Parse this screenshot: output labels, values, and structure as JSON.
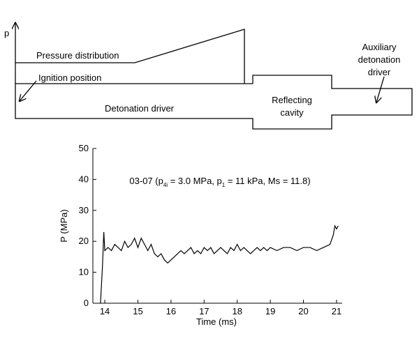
{
  "diagram": {
    "axis_label": "p",
    "pressure_label": "Pressure distribution",
    "ignition_label": "Ignition position",
    "driver_label": "Detonation driver",
    "cavity_label": [
      "Reflecting",
      "cavity"
    ],
    "aux_label": [
      "Auxiliary",
      "detonation",
      "driver"
    ]
  },
  "chart_data": {
    "type": "line",
    "annotation_parts": [
      "03-07 (p",
      "4i",
      " = 3.0 MPa, p",
      "1",
      " = 11 kPa, Ms = 11.8)"
    ],
    "xlabel": "Time (ms)",
    "ylabel": "P (MPa)",
    "color": "#000000",
    "x": [
      13.87,
      13.93,
      13.97,
      14.0,
      14.1,
      14.2,
      14.3,
      14.4,
      14.5,
      14.6,
      14.7,
      14.8,
      14.9,
      15.0,
      15.1,
      15.2,
      15.3,
      15.4,
      15.5,
      15.6,
      15.7,
      15.8,
      15.9,
      16.0,
      16.1,
      16.2,
      16.3,
      16.4,
      16.5,
      16.6,
      16.7,
      16.8,
      16.9,
      17.0,
      17.1,
      17.2,
      17.3,
      17.4,
      17.5,
      17.6,
      17.7,
      17.8,
      17.9,
      18.0,
      18.1,
      18.2,
      18.3,
      18.4,
      18.5,
      18.6,
      18.7,
      18.8,
      18.9,
      19.0,
      19.2,
      19.4,
      19.6,
      19.8,
      20.0,
      20.2,
      20.4,
      20.6,
      20.8,
      20.9,
      20.95,
      21.0,
      21.05
    ],
    "values": [
      0,
      12,
      23,
      17,
      18,
      17,
      19,
      18,
      17,
      20,
      18,
      19,
      21,
      18,
      21,
      19,
      17,
      19,
      16,
      15,
      16,
      14,
      13,
      14,
      15,
      16,
      17,
      16,
      17,
      18,
      16,
      17,
      16,
      18,
      17,
      18,
      16,
      17,
      18,
      17,
      16,
      18,
      17,
      19,
      17,
      18,
      17,
      16,
      17,
      18,
      17,
      18,
      17,
      18,
      17,
      18,
      18,
      17,
      18,
      18,
      17,
      18,
      19,
      22,
      25,
      24,
      25
    ],
    "xlim": [
      13.64,
      21.17
    ],
    "ylim": [
      0,
      50
    ],
    "xticks": [
      14,
      15,
      16,
      17,
      18,
      19,
      20,
      21
    ],
    "yticks": [
      0,
      10,
      20,
      30,
      40,
      50
    ]
  }
}
